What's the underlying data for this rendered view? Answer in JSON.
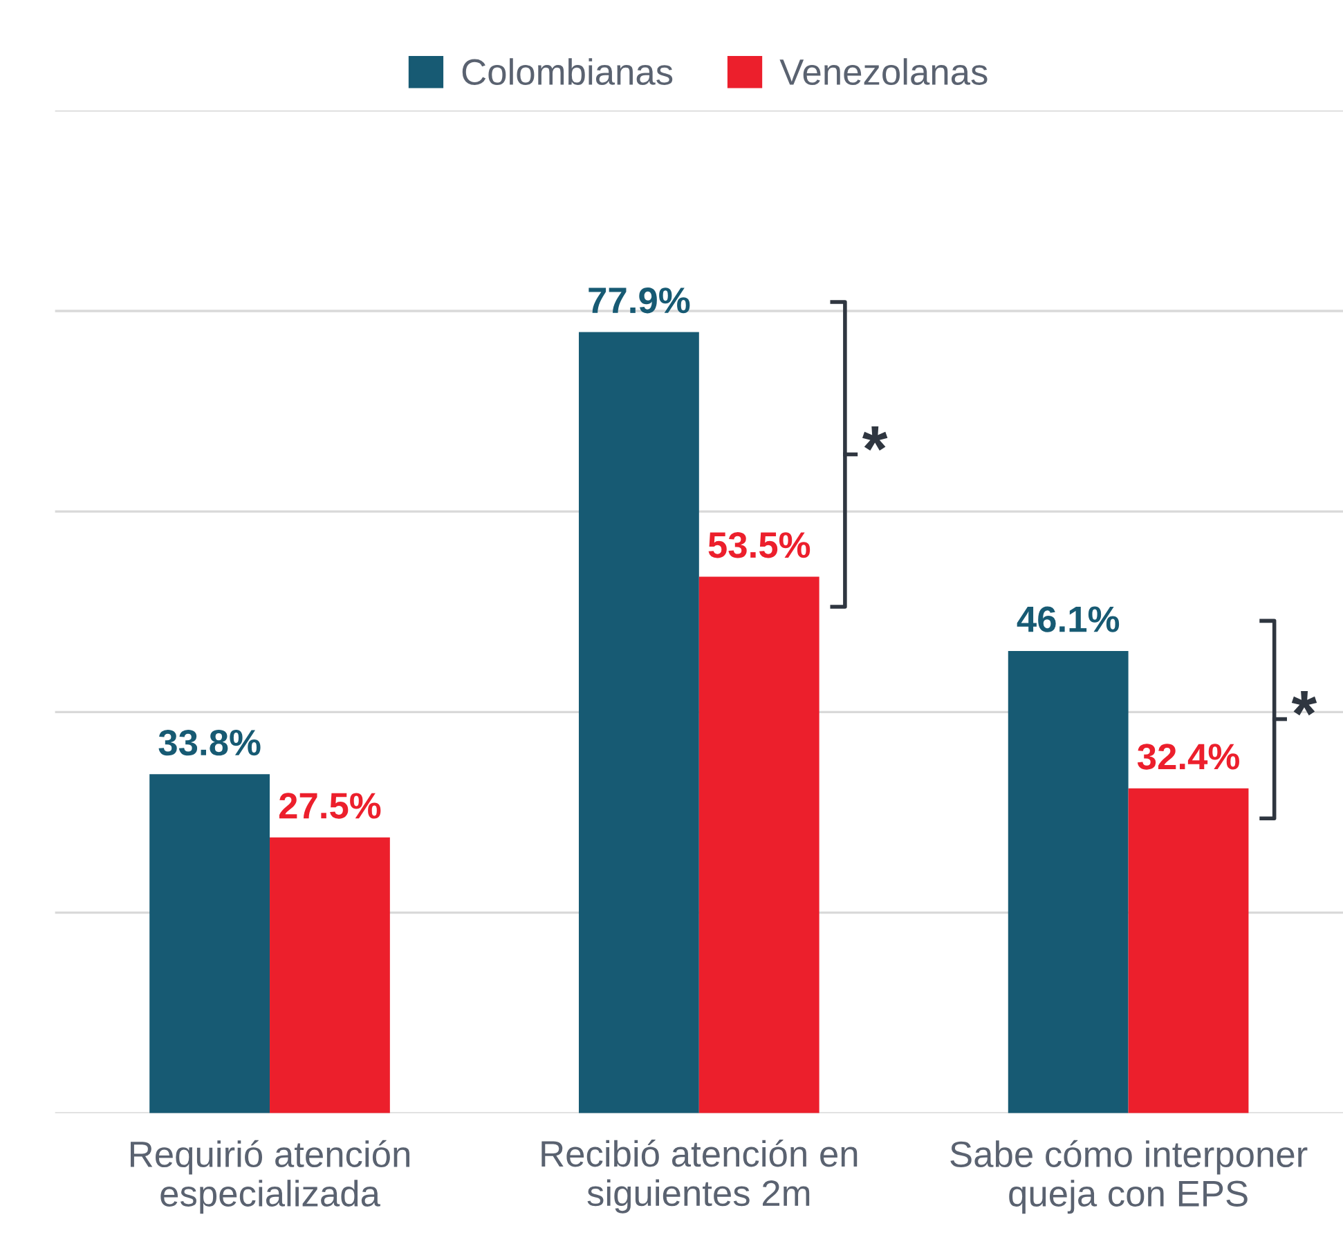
{
  "chart_data": {
    "type": "bar",
    "categories": [
      "Requirió atención\nespecializada",
      "Recibió atención en\nsiguientes 2m",
      "Sabe cómo interponer\nqueja con EPS"
    ],
    "series": [
      {
        "name": "Colombianas",
        "color": "#175a73",
        "values": [
          33.8,
          77.9,
          46.1
        ],
        "value_labels": [
          "33.8%",
          "77.9%",
          "46.1%"
        ]
      },
      {
        "name": "Venezolanas",
        "color": "#ec1f2c",
        "values": [
          27.5,
          53.5,
          32.4
        ],
        "value_labels": [
          "27.5%",
          "53.5%",
          "32.4%"
        ]
      }
    ],
    "ylim": [
      0,
      100
    ],
    "yticks": [
      {
        "value": 0,
        "label": null
      },
      {
        "value": 20,
        "label": null
      },
      {
        "value": 40,
        "label": null
      },
      {
        "value": 60,
        "label": null
      },
      {
        "value": 80,
        "label": null
      },
      {
        "value": 100,
        "label": null
      }
    ],
    "tick_labels": "x",
    "grid": "y",
    "legend": "top",
    "annotations": [
      {
        "text": "*",
        "x": "Recibió atención en\nsiguientes 2m",
        "y": 65.7
      },
      {
        "text": "*",
        "x": "Sabe cómo interponer\nqueja con EPS",
        "y": 39.3
      }
    ]
  }
}
